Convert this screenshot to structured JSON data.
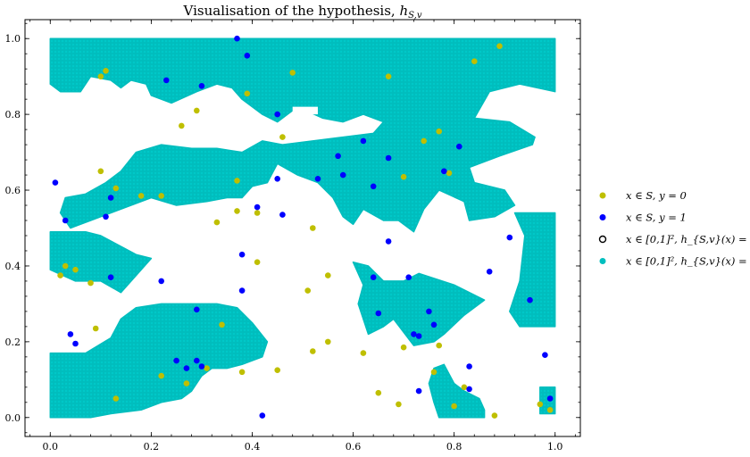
{
  "chart_data": {
    "type": "scatter",
    "title": "Visualisation of the hypothesis, h_{S,v}",
    "title_main": "Visualisation of the hypothesis, ",
    "title_math": "h",
    "title_sub": "S,v",
    "xlim": [
      -0.05,
      1.05
    ],
    "ylim": [
      -0.05,
      1.05
    ],
    "xticks": [
      "0.0",
      "0.2",
      "0.4",
      "0.6",
      "0.8",
      "1.0"
    ],
    "yticks": [
      "0.0",
      "0.2",
      "0.4",
      "0.6",
      "0.8",
      "1.0"
    ],
    "grid": false,
    "legend_position": "right",
    "colors": {
      "class0": "#bfbf00",
      "class1": "#0000ff",
      "region1": "#00bfbf",
      "region0_edge": "#000000"
    },
    "legend": [
      {
        "label": "x ∈ S, y = 0",
        "marker": "filled",
        "color": "#bfbf00"
      },
      {
        "label": "x ∈ S, y = 1",
        "marker": "filled",
        "color": "#0000ff"
      },
      {
        "label": "x ∈ [0,1]², h_{S,v}(x) = 0",
        "marker": "hollow",
        "color": "#000000"
      },
      {
        "label": "x ∈ [0,1]², h_{S,v}(x) = 1",
        "marker": "filled",
        "color": "#00bfbf"
      }
    ],
    "series": [
      {
        "name": "x ∈ S, y = 0",
        "points": [
          [
            0.1,
            0.9
          ],
          [
            0.11,
            0.915
          ],
          [
            0.39,
            0.855
          ],
          [
            0.48,
            0.91
          ],
          [
            0.29,
            0.81
          ],
          [
            0.26,
            0.77
          ],
          [
            0.67,
            0.9
          ],
          [
            0.84,
            0.94
          ],
          [
            0.89,
            0.98
          ],
          [
            0.46,
            0.74
          ],
          [
            0.74,
            0.73
          ],
          [
            0.77,
            0.755
          ],
          [
            0.1,
            0.65
          ],
          [
            0.13,
            0.605
          ],
          [
            0.18,
            0.585
          ],
          [
            0.22,
            0.585
          ],
          [
            0.37,
            0.625
          ],
          [
            0.7,
            0.635
          ],
          [
            0.79,
            0.645
          ],
          [
            0.37,
            0.545
          ],
          [
            0.33,
            0.515
          ],
          [
            0.41,
            0.54
          ],
          [
            0.52,
            0.5
          ],
          [
            0.41,
            0.41
          ],
          [
            0.02,
            0.375
          ],
          [
            0.03,
            0.4
          ],
          [
            0.05,
            0.39
          ],
          [
            0.08,
            0.355
          ],
          [
            0.55,
            0.375
          ],
          [
            0.51,
            0.335
          ],
          [
            0.09,
            0.235
          ],
          [
            0.34,
            0.245
          ],
          [
            0.38,
            0.12
          ],
          [
            0.45,
            0.125
          ],
          [
            0.31,
            0.13
          ],
          [
            0.27,
            0.09
          ],
          [
            0.22,
            0.11
          ],
          [
            0.13,
            0.05
          ],
          [
            0.52,
            0.175
          ],
          [
            0.55,
            0.2
          ],
          [
            0.62,
            0.17
          ],
          [
            0.7,
            0.185
          ],
          [
            0.77,
            0.19
          ],
          [
            0.65,
            0.065
          ],
          [
            0.69,
            0.035
          ],
          [
            0.76,
            0.12
          ],
          [
            0.82,
            0.08
          ],
          [
            0.8,
            0.03
          ],
          [
            0.88,
            0.005
          ],
          [
            0.97,
            0.035
          ],
          [
            0.99,
            0.02
          ]
        ]
      },
      {
        "name": "x ∈ S, y = 1",
        "points": [
          [
            0.37,
            1.0
          ],
          [
            0.39,
            0.955
          ],
          [
            0.23,
            0.89
          ],
          [
            0.3,
            0.875
          ],
          [
            0.45,
            0.8
          ],
          [
            0.62,
            0.73
          ],
          [
            0.81,
            0.715
          ],
          [
            0.78,
            0.65
          ],
          [
            0.57,
            0.69
          ],
          [
            0.67,
            0.685
          ],
          [
            0.53,
            0.63
          ],
          [
            0.58,
            0.64
          ],
          [
            0.45,
            0.63
          ],
          [
            0.64,
            0.61
          ],
          [
            0.01,
            0.62
          ],
          [
            0.12,
            0.58
          ],
          [
            0.11,
            0.53
          ],
          [
            0.03,
            0.52
          ],
          [
            0.41,
            0.555
          ],
          [
            0.46,
            0.535
          ],
          [
            0.67,
            0.465
          ],
          [
            0.91,
            0.475
          ],
          [
            0.38,
            0.43
          ],
          [
            0.12,
            0.37
          ],
          [
            0.22,
            0.36
          ],
          [
            0.38,
            0.335
          ],
          [
            0.64,
            0.37
          ],
          [
            0.71,
            0.37
          ],
          [
            0.87,
            0.385
          ],
          [
            0.65,
            0.275
          ],
          [
            0.75,
            0.28
          ],
          [
            0.76,
            0.245
          ],
          [
            0.72,
            0.22
          ],
          [
            0.73,
            0.215
          ],
          [
            0.95,
            0.31
          ],
          [
            0.29,
            0.285
          ],
          [
            0.04,
            0.22
          ],
          [
            0.05,
            0.195
          ],
          [
            0.25,
            0.15
          ],
          [
            0.29,
            0.15
          ],
          [
            0.27,
            0.13
          ],
          [
            0.3,
            0.135
          ],
          [
            0.98,
            0.165
          ],
          [
            0.83,
            0.135
          ],
          [
            0.73,
            0.07
          ],
          [
            0.83,
            0.075
          ],
          [
            0.99,
            0.05
          ],
          [
            0.42,
            0.005
          ]
        ]
      }
    ]
  }
}
